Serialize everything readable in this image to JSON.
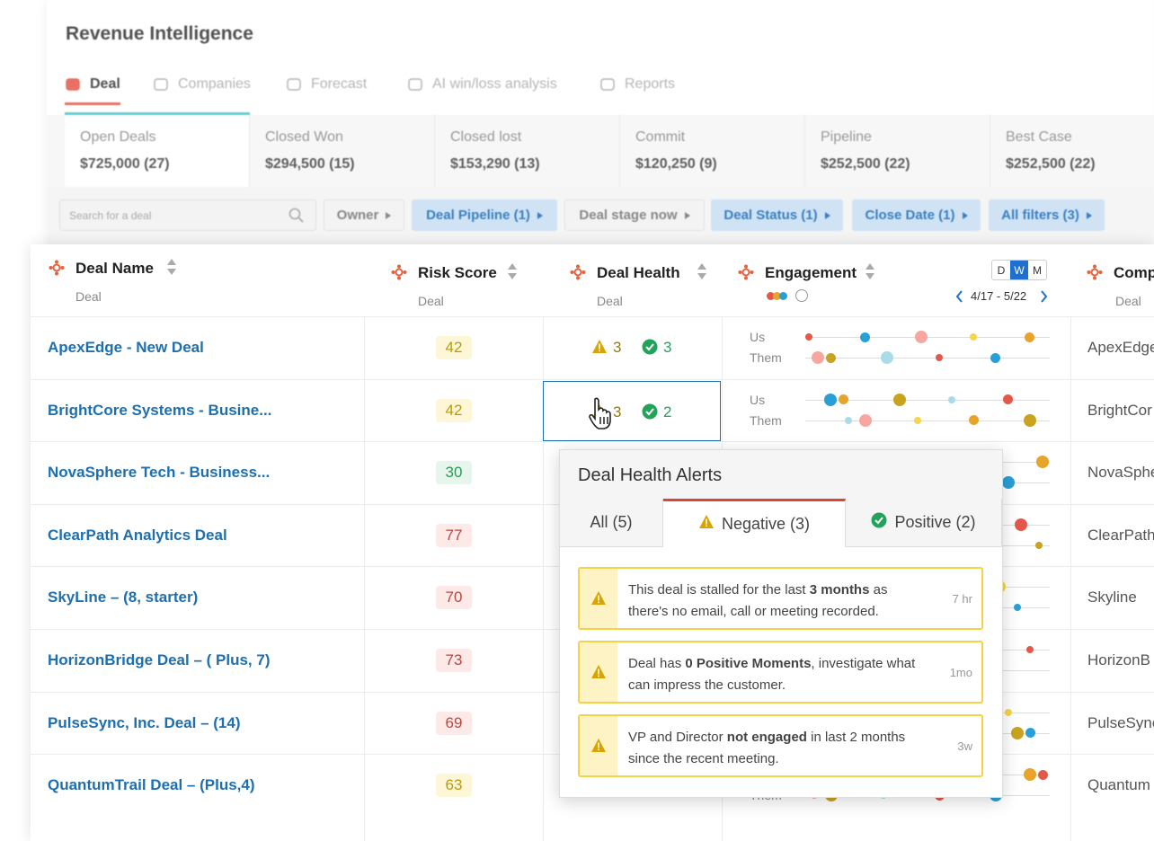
{
  "header": {
    "title": "Revenue Intelligence",
    "tabs": [
      "Deal",
      "Companies",
      "Forecast",
      "AI win/loss analysis",
      "Reports"
    ]
  },
  "summary": [
    {
      "label": "Open Deals",
      "value": "$725,000 (27)"
    },
    {
      "label": "Closed Won",
      "value": "$294,500 (15)"
    },
    {
      "label": "Closed lost",
      "value": "$153,290 (13)"
    },
    {
      "label": "Commit",
      "value": "$120,250 (9)"
    },
    {
      "label": "Pipeline",
      "value": "$252,500 (22)"
    },
    {
      "label": "Best Case",
      "value": "$252,500 (22)"
    }
  ],
  "filters": {
    "search": "Search for a deal",
    "buttons": [
      "Owner",
      "Deal Pipeline (1)",
      "Deal stage now",
      "Deal Status (1)",
      "Close Date (1)",
      "All filters (3)"
    ]
  },
  "table": {
    "columns": [
      {
        "name": "Deal Name",
        "sub": "Deal"
      },
      {
        "name": "Risk Score",
        "sub": "Deal"
      },
      {
        "name": "Deal Health",
        "sub": "Deal"
      },
      {
        "name": "Engagement"
      },
      {
        "name": "Comp",
        "sub": "Deal"
      }
    ],
    "engagement": {
      "periods": [
        "D",
        "W",
        "M"
      ],
      "range": "4/17 - 5/22",
      "us": "Us",
      "them": "Them"
    },
    "rows": [
      {
        "name": "ApexEdge - New Deal",
        "risk": 42,
        "warn": 3,
        "ok": 3,
        "company": "ApexEdge"
      },
      {
        "name": "BrightCore Systems - Busine...",
        "risk": 42,
        "warn": 3,
        "ok": 2,
        "company": "BrightCor"
      },
      {
        "name": "NovaSphere Tech - Business...",
        "risk": 30,
        "company": "NovaSphe"
      },
      {
        "name": "ClearPath Analytics Deal",
        "risk": 77,
        "company": "ClearPath"
      },
      {
        "name": "SkyLine – (8, starter)",
        "risk": 70,
        "company": "Skyline"
      },
      {
        "name": "HorizonBridge Deal – ( Plus, 7)",
        "risk": 73,
        "company": "HorizonB"
      },
      {
        "name": "PulseSync, Inc. Deal – (14)",
        "risk": 69,
        "company": "PulseSync"
      },
      {
        "name": "QuantumTrail Deal – (Plus,4)",
        "risk": 63,
        "company": "Quantum"
      }
    ]
  },
  "popup": {
    "title": "Deal Health Alerts",
    "tabs": [
      "All (5)",
      "Negative (3)",
      "Positive (2)"
    ],
    "alerts": [
      {
        "parts": [
          "This deal is stalled for the last ",
          "3 months",
          " as there's no email, call or meeting recorded."
        ],
        "time": "7 hr"
      },
      {
        "parts": [
          "Deal has ",
          "0 Positive Moments",
          ", investigate what can impress the customer."
        ],
        "time": "1mo"
      },
      {
        "parts": [
          "VP and Director ",
          "not engaged",
          " in last 2 months since the recent meeting."
        ],
        "time": "3w"
      }
    ]
  }
}
